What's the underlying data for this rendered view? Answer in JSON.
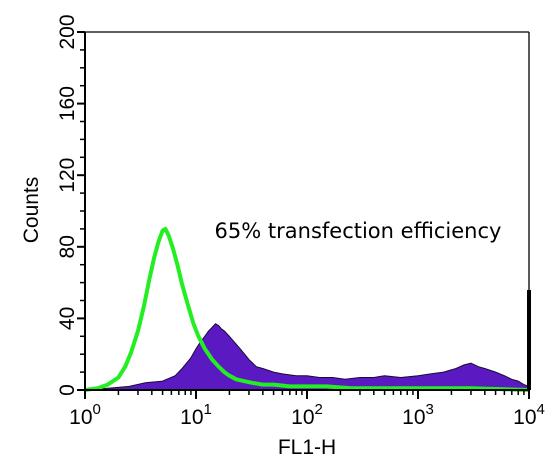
{
  "chart_data": {
    "type": "area",
    "title": "",
    "xlabel": "FL1-H",
    "ylabel": "Counts",
    "x_scale": "log",
    "xlim": [
      1,
      10000
    ],
    "ylim": [
      0,
      200
    ],
    "x_ticks": [
      {
        "base": "10",
        "exp": "0"
      },
      {
        "base": "10",
        "exp": "1"
      },
      {
        "base": "10",
        "exp": "2"
      },
      {
        "base": "10",
        "exp": "3"
      },
      {
        "base": "10",
        "exp": "4"
      }
    ],
    "y_ticks": [
      "0",
      "40",
      "80",
      "120",
      "160",
      "200"
    ],
    "grid": false,
    "annotation": "65% transfection efficiency",
    "series": [
      {
        "kind": "filled-histogram",
        "color": "#5b19c2",
        "x": [
          1,
          1.6,
          2.5,
          3.5,
          5,
          6.5,
          7.5,
          9,
          10,
          11,
          12,
          13,
          14,
          15,
          16,
          17,
          18,
          20,
          22,
          25,
          30,
          35,
          40,
          50,
          60,
          80,
          100,
          130,
          170,
          220,
          300,
          400,
          500,
          700,
          1000,
          1300,
          1700,
          2200,
          2600,
          3000,
          3500,
          4000,
          5000,
          6000,
          7000,
          8000,
          9000,
          10000
        ],
        "y": [
          0,
          1,
          2,
          4,
          5,
          8,
          12,
          18,
          23,
          27,
          30,
          33,
          35,
          37,
          36,
          34,
          33,
          30,
          27,
          23,
          17,
          13,
          12,
          10,
          9,
          8,
          8,
          7,
          7,
          6,
          7,
          7,
          8,
          7,
          8,
          9,
          10,
          12,
          14,
          15,
          13,
          12,
          10,
          8,
          6,
          5,
          3,
          2
        ]
      },
      {
        "kind": "line-histogram",
        "color": "#22ee22",
        "x": [
          1,
          1.3,
          1.6,
          2,
          2.3,
          2.6,
          3,
          3.4,
          3.8,
          4.2,
          4.6,
          5,
          5.3,
          5.7,
          6.2,
          6.8,
          7.5,
          8.5,
          9.5,
          10.5,
          12,
          14,
          16,
          18,
          20,
          23,
          27,
          32,
          40,
          50,
          70,
          100,
          150,
          250,
          500,
          1000,
          3000,
          10000
        ],
        "y": [
          0,
          1,
          3,
          7,
          13,
          21,
          33,
          47,
          62,
          74,
          83,
          89,
          90,
          86,
          79,
          70,
          59,
          47,
          37,
          30,
          23,
          17,
          13,
          10,
          8,
          6,
          5,
          4,
          3,
          3,
          2,
          2,
          2,
          1,
          1,
          1,
          1,
          0
        ]
      }
    ]
  }
}
